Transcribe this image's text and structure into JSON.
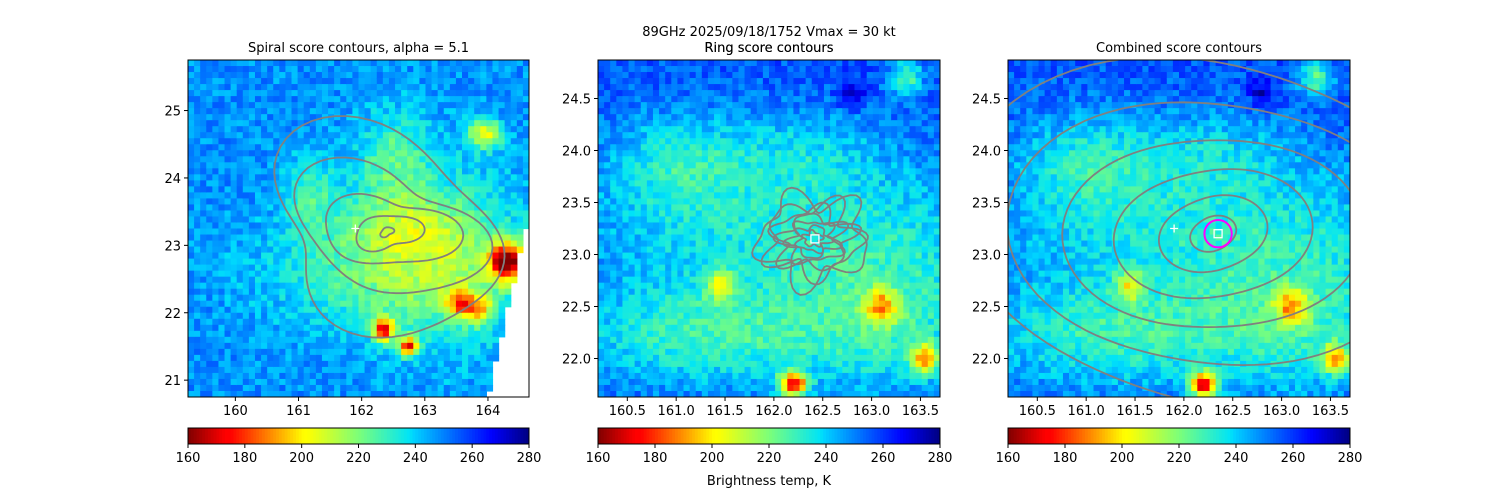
{
  "suptitle": {
    "line1": "89GHz  2025/09/18/1752    Vmax = 30 kt",
    "line2": "Ring score contours"
  },
  "colorbar_label": "Brightness temp, K",
  "colors": {
    "contour": "#808080",
    "center_marker": "#ffffff",
    "ring": "#ff00ff"
  },
  "colormap": "jet_r",
  "chart_data": [
    {
      "type": "heatmap",
      "title": "Spiral score contours, alpha =  5.1",
      "xlim": [
        159.25,
        164.65
      ],
      "ylim": [
        20.75,
        25.75
      ],
      "xticks": [
        160,
        161,
        162,
        163,
        164
      ],
      "yticks": [
        21,
        22,
        23,
        24,
        25
      ],
      "xticklabels": [
        "160",
        "161",
        "162",
        "163",
        "164"
      ],
      "yticklabels": [
        "21",
        "22",
        "23",
        "24",
        "25"
      ],
      "field": {
        "base": 248,
        "swath_edge": true,
        "features": [
          {
            "x": 162.4,
            "y": 22.6,
            "sx": 1.3,
            "sy": 0.6,
            "amp": -22
          },
          {
            "x": 163.4,
            "y": 22.9,
            "sx": 0.9,
            "sy": 1.0,
            "amp": -18
          },
          {
            "x": 162.5,
            "y": 24.3,
            "sx": 0.4,
            "sy": 0.5,
            "amp": -20
          },
          {
            "x": 161.2,
            "y": 23.8,
            "sx": 0.3,
            "sy": 0.4,
            "amp": -18
          },
          {
            "x": 162.6,
            "y": 23.3,
            "sx": 0.7,
            "sy": 0.35,
            "amp": -16
          },
          {
            "x": 164.3,
            "y": 22.75,
            "sx": 0.2,
            "sy": 0.2,
            "amp": -80
          },
          {
            "x": 162.35,
            "y": 21.75,
            "sx": 0.12,
            "sy": 0.12,
            "amp": -70
          },
          {
            "x": 162.75,
            "y": 21.5,
            "sx": 0.1,
            "sy": 0.1,
            "amp": -70
          },
          {
            "x": 163.55,
            "y": 22.15,
            "sx": 0.15,
            "sy": 0.15,
            "amp": -45
          },
          {
            "x": 163.95,
            "y": 24.65,
            "sx": 0.2,
            "sy": 0.15,
            "amp": -40
          },
          {
            "x": 163.85,
            "y": 22.05,
            "sx": 0.15,
            "sy": 0.15,
            "amp": -40
          }
        ]
      },
      "contours": {
        "center": [
          162.4,
          23.2
        ],
        "radii": [
          0.08,
          0.35,
          0.7,
          1.1,
          1.55
        ],
        "style": "spiral"
      },
      "markers": [
        {
          "type": "plus",
          "x": 161.9,
          "y": 23.25
        }
      ],
      "colorbar": {
        "range": [
          160,
          280
        ],
        "ticks": [
          160,
          180,
          200,
          220,
          240,
          260,
          280
        ],
        "ticklabels": [
          "160",
          "180",
          "200",
          "220",
          "240",
          "260",
          "280"
        ]
      }
    },
    {
      "type": "heatmap",
      "title": "Ring score contours",
      "xlim": [
        160.2,
        163.7
      ],
      "ylim": [
        21.63,
        24.87
      ],
      "xticks": [
        160.5,
        161.0,
        161.5,
        162.0,
        162.5,
        163.0,
        163.5
      ],
      "yticks": [
        22.0,
        22.5,
        23.0,
        23.5,
        24.0,
        24.5
      ],
      "xticklabels": [
        "160.5",
        "161.0",
        "161.5",
        "162.0",
        "162.5",
        "163.0",
        "163.5"
      ],
      "yticklabels": [
        "22.0",
        "22.5",
        "23.0",
        "23.5",
        "24.0",
        "24.5"
      ],
      "field": {
        "base": 256,
        "swath_edge": false,
        "features": [
          {
            "x": 162.3,
            "y": 23.2,
            "sx": 1.6,
            "sy": 0.55,
            "amp": -22
          },
          {
            "x": 161.3,
            "y": 22.2,
            "sx": 1.0,
            "sy": 0.35,
            "amp": -24
          },
          {
            "x": 163.2,
            "y": 22.3,
            "sx": 0.7,
            "sy": 0.5,
            "amp": -20
          },
          {
            "x": 161.0,
            "y": 23.9,
            "sx": 0.5,
            "sy": 0.35,
            "amp": -18
          },
          {
            "x": 162.3,
            "y": 24.0,
            "sx": 0.6,
            "sy": 0.3,
            "amp": -12
          },
          {
            "x": 162.2,
            "y": 21.75,
            "sx": 0.1,
            "sy": 0.08,
            "amp": -80
          },
          {
            "x": 163.55,
            "y": 22.0,
            "sx": 0.1,
            "sy": 0.1,
            "amp": -50
          },
          {
            "x": 163.1,
            "y": 22.5,
            "sx": 0.12,
            "sy": 0.12,
            "amp": -40
          },
          {
            "x": 161.45,
            "y": 22.7,
            "sx": 0.1,
            "sy": 0.1,
            "amp": -35
          },
          {
            "x": 163.35,
            "y": 24.7,
            "sx": 0.12,
            "sy": 0.12,
            "amp": -30
          },
          {
            "x": 162.8,
            "y": 24.55,
            "sx": 0.1,
            "sy": 0.1,
            "amp": 18
          }
        ]
      },
      "contours": {
        "center": [
          162.4,
          23.15
        ],
        "radii": [
          0.08,
          0.14,
          0.2,
          0.26,
          0.33,
          0.4,
          0.47
        ],
        "style": "noisy"
      },
      "markers": [
        {
          "type": "square",
          "x": 162.42,
          "y": 23.15
        }
      ],
      "colorbar": {
        "range": [
          160,
          280
        ],
        "ticks": [
          160,
          180,
          200,
          220,
          240,
          260,
          280
        ],
        "ticklabels": [
          "160",
          "180",
          "200",
          "220",
          "240",
          "260",
          "280"
        ]
      }
    },
    {
      "type": "heatmap",
      "title": "Combined score contours",
      "xlim": [
        160.2,
        163.7
      ],
      "ylim": [
        21.63,
        24.87
      ],
      "xticks": [
        160.5,
        161.0,
        161.5,
        162.0,
        162.5,
        163.0,
        163.5
      ],
      "yticks": [
        22.0,
        22.5,
        23.0,
        23.5,
        24.0,
        24.5
      ],
      "xticklabels": [
        "160.5",
        "161.0",
        "161.5",
        "162.0",
        "162.5",
        "163.0",
        "163.5"
      ],
      "yticklabels": [
        "22.0",
        "22.5",
        "23.0",
        "23.5",
        "24.0",
        "24.5"
      ],
      "field": {
        "base": 256,
        "swath_edge": false,
        "features": [
          {
            "x": 162.3,
            "y": 23.2,
            "sx": 1.6,
            "sy": 0.55,
            "amp": -22
          },
          {
            "x": 161.3,
            "y": 22.2,
            "sx": 1.0,
            "sy": 0.35,
            "amp": -24
          },
          {
            "x": 163.2,
            "y": 22.3,
            "sx": 0.7,
            "sy": 0.5,
            "amp": -20
          },
          {
            "x": 161.0,
            "y": 23.9,
            "sx": 0.5,
            "sy": 0.35,
            "amp": -18
          },
          {
            "x": 162.3,
            "y": 24.0,
            "sx": 0.6,
            "sy": 0.3,
            "amp": -12
          },
          {
            "x": 162.2,
            "y": 21.75,
            "sx": 0.1,
            "sy": 0.08,
            "amp": -80
          },
          {
            "x": 163.55,
            "y": 22.0,
            "sx": 0.1,
            "sy": 0.1,
            "amp": -50
          },
          {
            "x": 163.1,
            "y": 22.5,
            "sx": 0.12,
            "sy": 0.12,
            "amp": -40
          },
          {
            "x": 161.45,
            "y": 22.7,
            "sx": 0.1,
            "sy": 0.1,
            "amp": -35
          },
          {
            "x": 163.35,
            "y": 24.7,
            "sx": 0.12,
            "sy": 0.12,
            "amp": -30
          },
          {
            "x": 162.8,
            "y": 24.55,
            "sx": 0.1,
            "sy": 0.1,
            "amp": 18
          }
        ]
      },
      "contours": {
        "center": [
          162.3,
          23.2
        ],
        "radii": [
          0.2,
          0.45,
          0.8,
          1.2,
          1.65,
          2.1
        ],
        "style": "smooth"
      },
      "markers": [
        {
          "type": "plus",
          "x": 161.9,
          "y": 23.25
        },
        {
          "type": "ring",
          "x": 162.35,
          "y": 23.2,
          "r": 0.14
        },
        {
          "type": "square",
          "x": 162.35,
          "y": 23.2
        }
      ],
      "colorbar": {
        "range": [
          160,
          280
        ],
        "ticks": [
          160,
          180,
          200,
          220,
          240,
          260,
          280
        ],
        "ticklabels": [
          "160",
          "180",
          "200",
          "220",
          "240",
          "260",
          "280"
        ]
      }
    }
  ]
}
